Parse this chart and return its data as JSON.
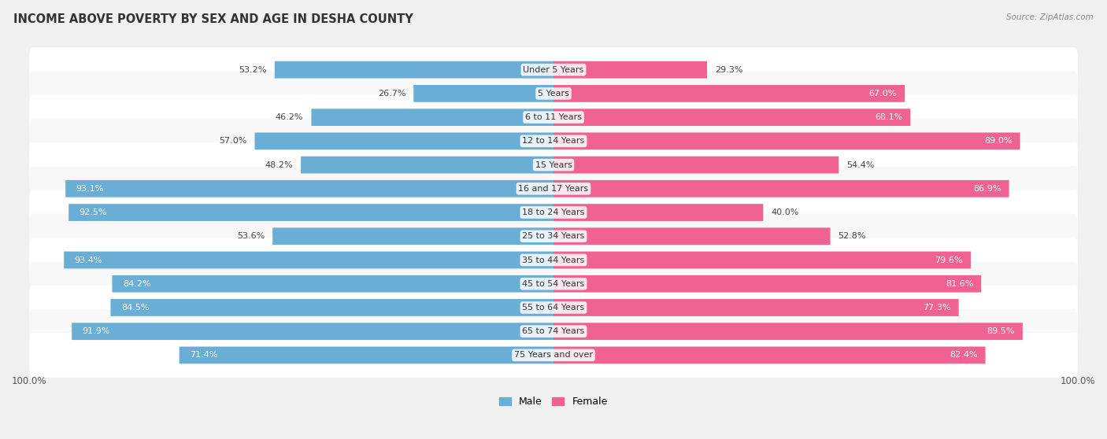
{
  "title": "INCOME ABOVE POVERTY BY SEX AND AGE IN DESHA COUNTY",
  "source": "Source: ZipAtlas.com",
  "categories": [
    "Under 5 Years",
    "5 Years",
    "6 to 11 Years",
    "12 to 14 Years",
    "15 Years",
    "16 and 17 Years",
    "18 to 24 Years",
    "25 to 34 Years",
    "35 to 44 Years",
    "45 to 54 Years",
    "55 to 64 Years",
    "65 to 74 Years",
    "75 Years and over"
  ],
  "male_values": [
    53.2,
    26.7,
    46.2,
    57.0,
    48.2,
    93.1,
    92.5,
    53.6,
    93.4,
    84.2,
    84.5,
    91.9,
    71.4
  ],
  "female_values": [
    29.3,
    67.0,
    68.1,
    89.0,
    54.4,
    86.9,
    40.0,
    52.8,
    79.6,
    81.6,
    77.3,
    89.5,
    82.4
  ],
  "male_color": "#6aaed6",
  "female_color": "#f06292",
  "male_color_light": "#aed4eb",
  "female_color_light": "#f8bbd0",
  "background_color": "#f0f0f0",
  "row_bg_even": "#f8f8f8",
  "row_bg_odd": "#ffffff",
  "title_fontsize": 10.5,
  "label_fontsize": 8.0,
  "value_fontsize": 8.0,
  "max_value": 100.0
}
